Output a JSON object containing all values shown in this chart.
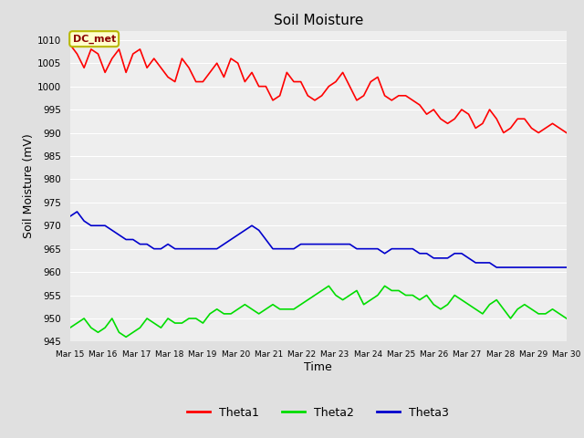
{
  "title": "Soil Moisture",
  "xlabel": "Time",
  "ylabel": "Soil Moisture (mV)",
  "ylim": [
    945,
    1012
  ],
  "yticks": [
    945,
    950,
    955,
    960,
    965,
    970,
    975,
    980,
    985,
    990,
    995,
    1000,
    1005,
    1010
  ],
  "background_color": "#e0e0e0",
  "plot_bg_color": "#eeeeee",
  "grid_color": "#ffffff",
  "annotation_text": "DC_met",
  "theta1_color": "#ff0000",
  "theta2_color": "#00dd00",
  "theta3_color": "#0000cc",
  "line_width": 1.2,
  "x_labels": [
    "Mar 15",
    "Mar 16",
    "Mar 17",
    "Mar 18",
    "Mar 19",
    "Mar 20",
    "Mar 21",
    "Mar 22",
    "Mar 23",
    "Mar 24",
    "Mar 25",
    "Mar 26",
    "Mar 27",
    "Mar 28",
    "Mar 29",
    "Mar 30"
  ],
  "theta1_values": [
    1009,
    1007,
    1004,
    1008,
    1007,
    1003,
    1006,
    1008,
    1003,
    1007,
    1008,
    1004,
    1006,
    1004,
    1002,
    1001,
    1006,
    1004,
    1001,
    1001,
    1003,
    1005,
    1002,
    1006,
    1005,
    1001,
    1003,
    1000,
    1000,
    997,
    998,
    1003,
    1001,
    1001,
    998,
    997,
    998,
    1000,
    1001,
    1003,
    1000,
    997,
    998,
    1001,
    1002,
    998,
    997,
    998,
    998,
    997,
    996,
    994,
    995,
    993,
    992,
    993,
    995,
    994,
    991,
    992,
    995,
    993,
    990,
    991,
    993,
    993,
    991,
    990,
    991,
    992,
    991,
    990
  ],
  "theta2_values": [
    948,
    949,
    950,
    948,
    947,
    948,
    950,
    947,
    946,
    947,
    948,
    950,
    949,
    948,
    950,
    949,
    949,
    950,
    950,
    949,
    951,
    952,
    951,
    951,
    952,
    953,
    952,
    951,
    952,
    953,
    952,
    952,
    952,
    953,
    954,
    955,
    956,
    957,
    955,
    954,
    955,
    956,
    953,
    954,
    955,
    957,
    956,
    956,
    955,
    955,
    954,
    955,
    953,
    952,
    953,
    955,
    954,
    953,
    952,
    951,
    953,
    954,
    952,
    950,
    952,
    953,
    952,
    951,
    951,
    952,
    951,
    950
  ],
  "theta3_values": [
    972,
    973,
    971,
    970,
    970,
    970,
    969,
    968,
    967,
    967,
    966,
    966,
    965,
    965,
    966,
    965,
    965,
    965,
    965,
    965,
    965,
    965,
    966,
    967,
    968,
    969,
    970,
    969,
    967,
    965,
    965,
    965,
    965,
    966,
    966,
    966,
    966,
    966,
    966,
    966,
    966,
    965,
    965,
    965,
    965,
    964,
    965,
    965,
    965,
    965,
    964,
    964,
    963,
    963,
    963,
    964,
    964,
    963,
    962,
    962,
    962,
    961,
    961,
    961,
    961,
    961,
    961,
    961,
    961,
    961,
    961,
    961
  ]
}
